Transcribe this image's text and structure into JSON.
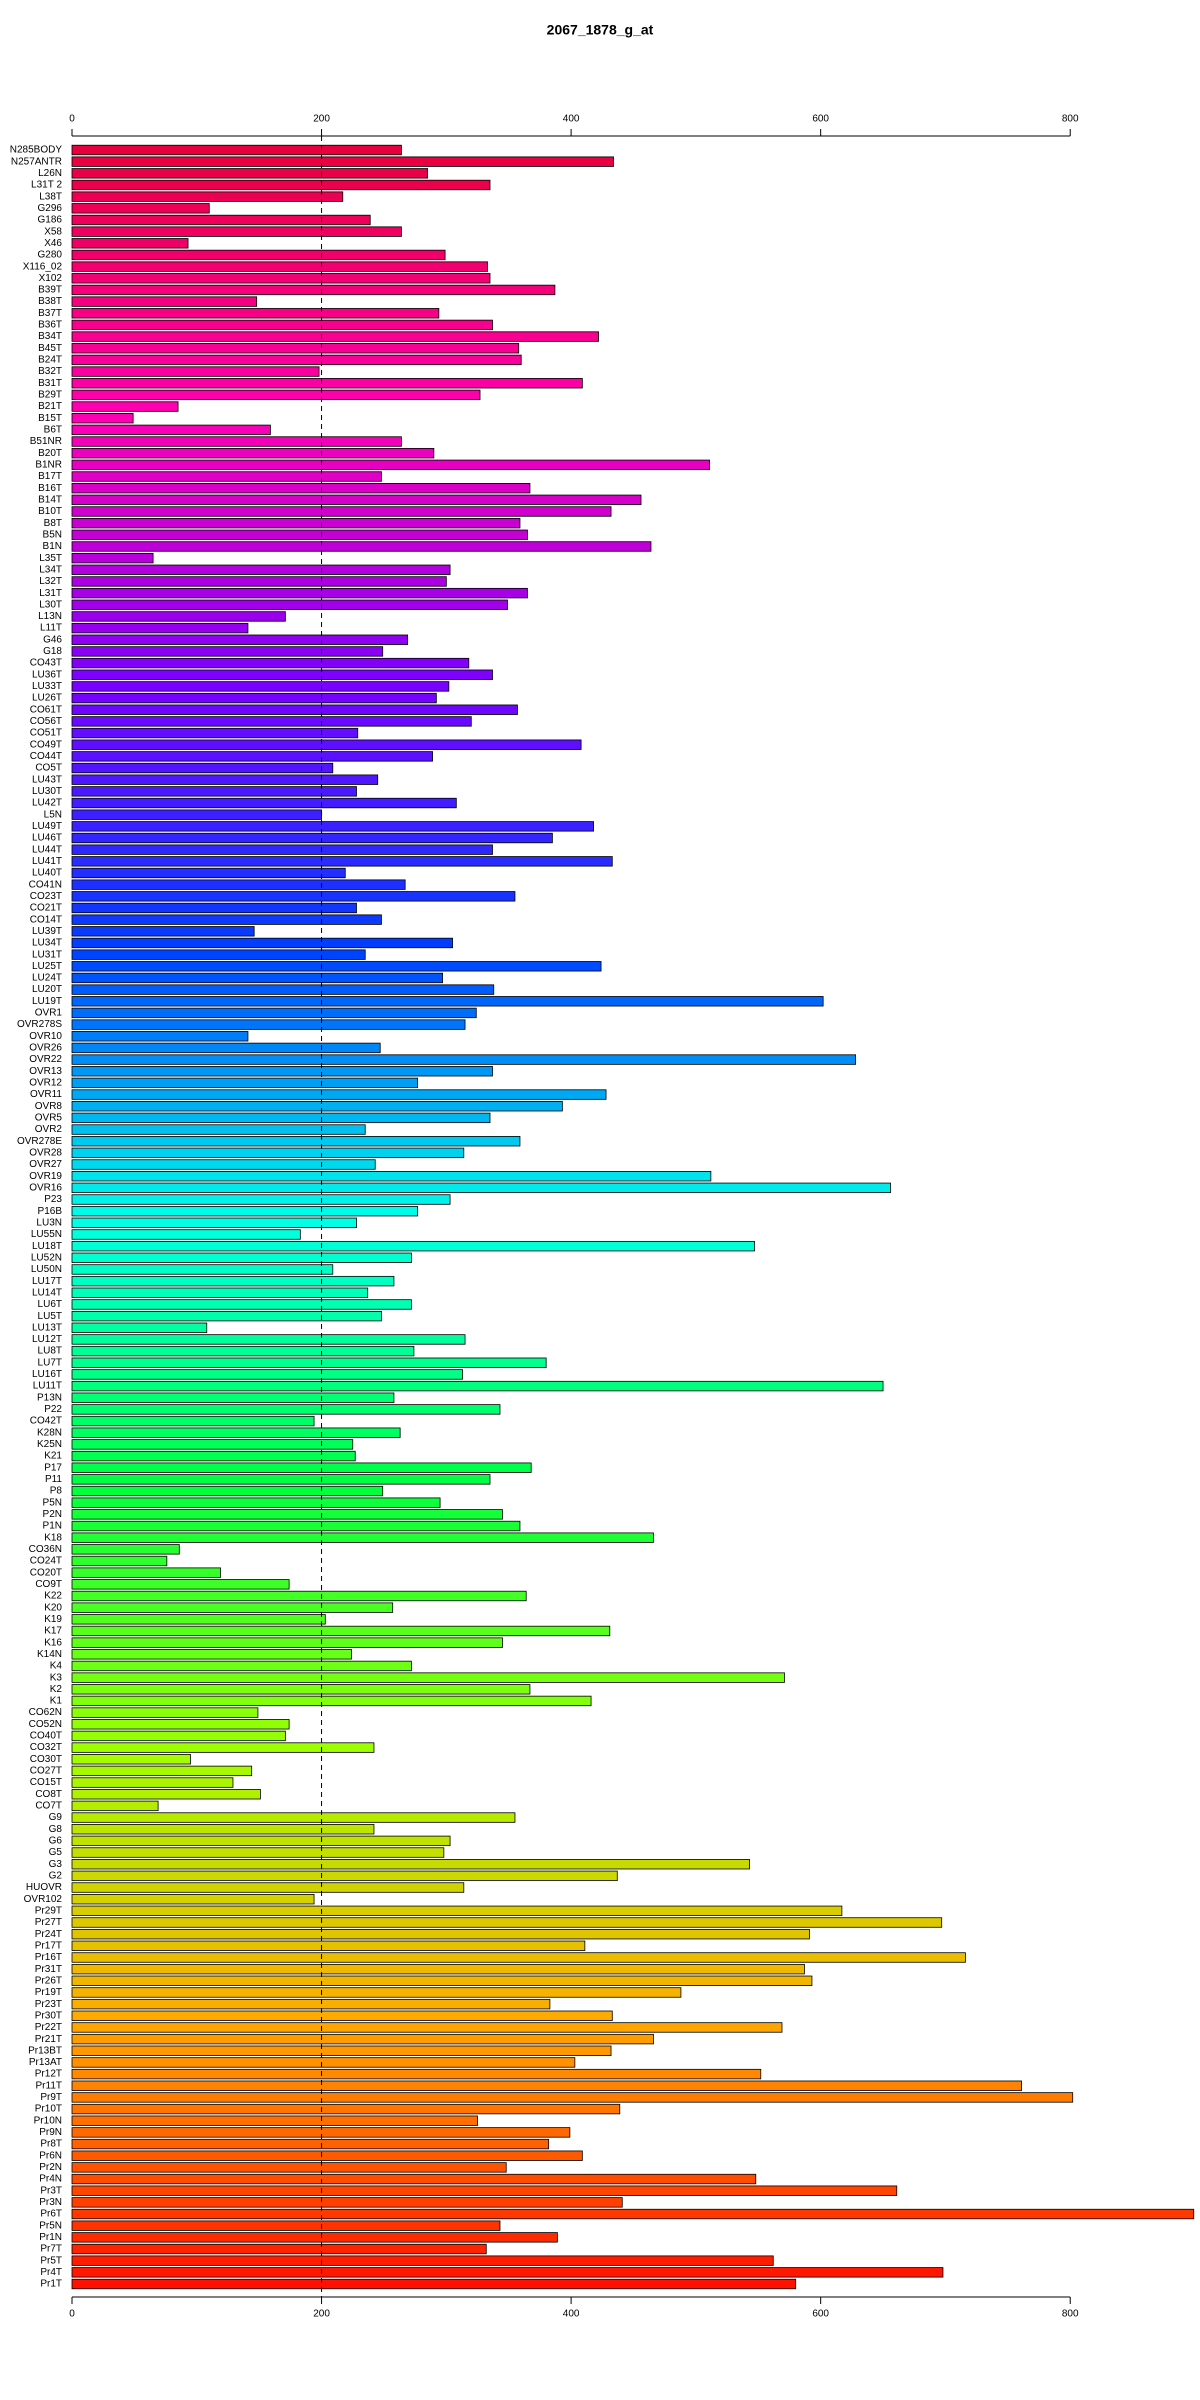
{
  "chart_data": {
    "type": "bar",
    "orientation": "horizontal",
    "title": "2067_1878_g_at",
    "categories": [
      "N285BODY",
      "N257ANTR",
      "L26N",
      "L31T 2",
      "L38T",
      "G296",
      "G186",
      "X58",
      "X46",
      "G280",
      "X116_02",
      "X102",
      "B39T",
      "B38T",
      "B37T",
      "B36T",
      "B34T",
      "B45T",
      "B24T",
      "B32T",
      "B31T",
      "B29T",
      "B21T",
      "B15T",
      "B6T",
      "B51NR",
      "B20T",
      "B1NR",
      "B17T",
      "B16T",
      "B14T",
      "B10T",
      "B8T",
      "B5N",
      "B1N",
      "L35T",
      "L34T",
      "L32T",
      "L31T",
      "L30T",
      "L13N",
      "L11T",
      "G46",
      "G18",
      "CO43T",
      "LU36T",
      "LU33T",
      "LU26T",
      "CO61T",
      "CO56T",
      "CO51T",
      "CO49T",
      "CO44T",
      "CO5T",
      "LU43T",
      "LU30T",
      "LU42T",
      "L5N",
      "LU49T",
      "LU46T",
      "LU44T",
      "LU41T",
      "LU40T",
      "CO41N",
      "CO23T",
      "CO21T",
      "CO14T",
      "LU39T",
      "LU34T",
      "LU31T",
      "LU25T",
      "LU24T",
      "LU20T",
      "LU19T",
      "OVR1",
      "OVR278S",
      "OVR10",
      "OVR26",
      "OVR22",
      "OVR13",
      "OVR12",
      "OVR11",
      "OVR8",
      "OVR5",
      "OVR2",
      "OVR278E",
      "OVR28",
      "OVR27",
      "OVR19",
      "OVR16",
      "P23",
      "P16B",
      "LU3N",
      "LU55N",
      "LU18T",
      "LU52N",
      "LU50N",
      "LU17T",
      "LU14T",
      "LU6T",
      "LU5T",
      "LU13T",
      "LU12T",
      "LU8T",
      "LU7T",
      "LU16T",
      "LU11T",
      "P13N",
      "P22",
      "CO42T",
      "K28N",
      "K25N",
      "K21",
      "P17",
      "P11",
      "P8",
      "P5N",
      "P2N",
      "P1N",
      "K18",
      "CO36N",
      "CO24T",
      "CO20T",
      "CO9T",
      "K22",
      "K20",
      "K19",
      "K17",
      "K16",
      "K14N",
      "K4",
      "K3",
      "K2",
      "K1",
      "CO62N",
      "CO52N",
      "CO40T",
      "CO32T",
      "CO30T",
      "CO27T",
      "CO15T",
      "CO8T",
      "CO7T",
      "G9",
      "G8",
      "G6",
      "G5",
      "G3",
      "G2",
      "HUOVR",
      "OVR102",
      "Pr29T",
      "Pr27T",
      "Pr24T",
      "Pr17T",
      "Pr16T",
      "Pr31T",
      "Pr26T",
      "Pr19T",
      "Pr23T",
      "Pr30T",
      "Pr22T",
      "Pr21T",
      "Pr13BT",
      "Pr13AT",
      "Pr12T",
      "Pr11T",
      "Pr9T",
      "Pr10T",
      "Pr10N",
      "Pr9N",
      "Pr8T",
      "Pr6N",
      "Pr2N",
      "Pr4N",
      "Pr3T",
      "Pr3N",
      "Pr6T",
      "Pr5N",
      "Pr1N",
      "Pr7T",
      "Pr5T",
      "Pr4T",
      "Pr1T"
    ],
    "values": [
      264,
      434,
      285,
      335,
      217,
      110,
      239,
      264,
      93,
      299,
      333,
      335,
      387,
      148,
      294,
      337,
      422,
      358,
      360,
      198,
      409,
      327,
      85,
      49,
      159,
      264,
      290,
      511,
      248,
      367,
      456,
      432,
      359,
      365,
      464,
      65,
      303,
      300,
      365,
      349,
      171,
      141,
      269,
      249,
      318,
      337,
      302,
      292,
      357,
      320,
      229,
      408,
      289,
      209,
      245,
      228,
      308,
      200,
      418,
      385,
      337,
      433,
      219,
      267,
      355,
      228,
      248,
      146,
      305,
      235,
      424,
      297,
      338,
      602,
      324,
      315,
      141,
      247,
      628,
      337,
      277,
      428,
      393,
      335,
      235,
      359,
      314,
      243,
      512,
      656,
      303,
      277,
      228,
      183,
      547,
      272,
      209,
      258,
      237,
      272,
      248,
      108,
      315,
      274,
      380,
      313,
      650,
      258,
      343,
      194,
      263,
      225,
      227,
      368,
      335,
      249,
      295,
      345,
      359,
      466,
      86,
      76,
      119,
      174,
      364,
      257,
      203,
      431,
      345,
      224,
      272,
      571,
      367,
      416,
      149,
      174,
      171,
      242,
      95,
      144,
      129,
      151,
      69,
      355,
      242,
      303,
      298,
      543,
      437,
      314,
      194,
      617,
      697,
      591,
      411,
      716,
      587,
      593,
      488,
      383,
      433,
      569,
      466,
      432,
      403,
      552,
      761,
      802,
      439,
      325,
      399,
      382,
      409,
      348,
      548,
      661,
      441,
      899,
      343,
      389,
      332,
      562,
      698,
      580
    ],
    "bar_gradient": [
      "#e8003c",
      "#ff00b4",
      "#7a00ff",
      "#0040ff",
      "#00ffe8",
      "#00ff40",
      "#a0ff00",
      "#ffaa00",
      "#ff1000"
    ],
    "xlim": [
      0,
      900
    ],
    "xticks": [
      0,
      200,
      400,
      600,
      800
    ],
    "reference_line": 200
  }
}
